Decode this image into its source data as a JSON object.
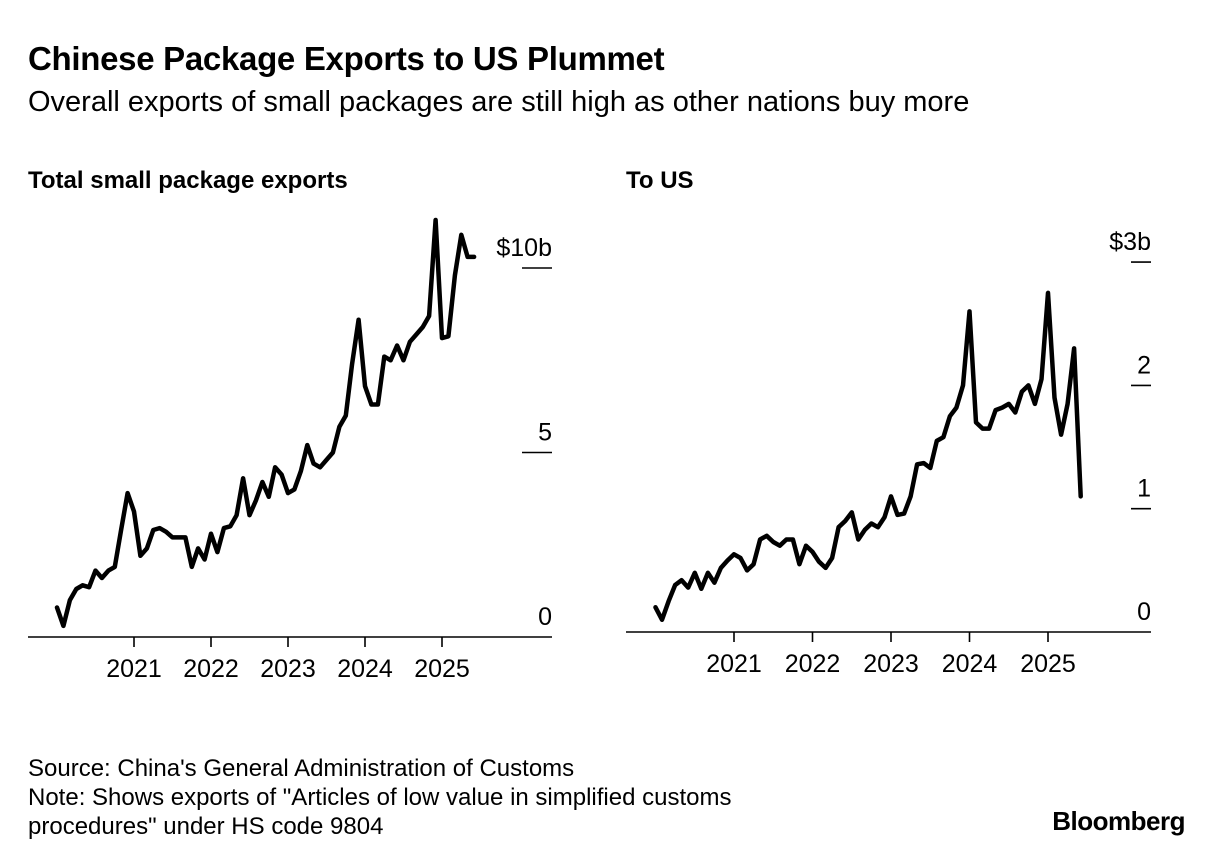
{
  "header": {
    "title": "Chinese Package Exports to US Plummet",
    "subtitle": "Overall exports of small packages are still high as other nations buy more"
  },
  "footer": {
    "source": "Source: China's General Administration of Customs",
    "note": "Note: Shows exports of \"Articles of low value in simplified customs procedures\" under HS code 9804",
    "brand": "Bloomberg"
  },
  "colors": {
    "line": "#000000",
    "axis": "#000000",
    "text": "#000000",
    "background": "#ffffff"
  },
  "chart_data": [
    {
      "type": "line",
      "title": "Total small package exports",
      "xlabel": "",
      "ylabel": "",
      "ylim": [
        0,
        11
      ],
      "xlim": [
        2019.6,
        2026.4
      ],
      "y_ticks": [
        {
          "value": 0,
          "label": "0"
        },
        {
          "value": 5,
          "label": "5"
        },
        {
          "value": 10,
          "label": "$10b"
        }
      ],
      "x_ticks": [
        {
          "value": 2021,
          "label": "2021"
        },
        {
          "value": 2022,
          "label": "2022"
        },
        {
          "value": 2023,
          "label": "2023"
        },
        {
          "value": 2024,
          "label": "2024"
        },
        {
          "value": 2025,
          "label": "2025"
        }
      ],
      "series": [
        {
          "name": "Total small package exports",
          "unit": "$b",
          "x": [
            2020.0,
            2020.083,
            2020.167,
            2020.25,
            2020.333,
            2020.417,
            2020.5,
            2020.583,
            2020.667,
            2020.75,
            2020.833,
            2020.917,
            2021.0,
            2021.083,
            2021.167,
            2021.25,
            2021.333,
            2021.417,
            2021.5,
            2021.583,
            2021.667,
            2021.75,
            2021.833,
            2021.917,
            2022.0,
            2022.083,
            2022.167,
            2022.25,
            2022.333,
            2022.417,
            2022.5,
            2022.583,
            2022.667,
            2022.75,
            2022.833,
            2022.917,
            2023.0,
            2023.083,
            2023.167,
            2023.25,
            2023.333,
            2023.417,
            2023.5,
            2023.583,
            2023.667,
            2023.75,
            2023.833,
            2023.917,
            2024.0,
            2024.083,
            2024.167,
            2024.25,
            2024.333,
            2024.417,
            2024.5,
            2024.583,
            2024.667,
            2024.75,
            2024.833,
            2024.917,
            2025.0,
            2025.083,
            2025.167,
            2025.25,
            2025.333,
            2025.417
          ],
          "values": [
            0.8,
            0.3,
            1.0,
            1.3,
            1.4,
            1.35,
            1.8,
            1.6,
            1.8,
            1.9,
            2.9,
            3.9,
            3.4,
            2.2,
            2.4,
            2.9,
            2.95,
            2.85,
            2.7,
            2.7,
            2.7,
            1.9,
            2.4,
            2.1,
            2.8,
            2.3,
            2.95,
            3.0,
            3.3,
            4.3,
            3.3,
            3.7,
            4.2,
            3.8,
            4.6,
            4.4,
            3.9,
            4.0,
            4.5,
            5.2,
            4.7,
            4.6,
            4.8,
            5.0,
            5.7,
            6.0,
            7.4,
            8.6,
            6.8,
            6.3,
            6.3,
            7.6,
            7.5,
            7.9,
            7.5,
            8.0,
            8.2,
            8.4,
            8.7,
            11.3,
            8.1,
            8.15,
            9.8,
            10.9,
            10.3,
            10.3
          ]
        }
      ]
    },
    {
      "type": "line",
      "title": "To US",
      "xlabel": "",
      "ylabel": "",
      "ylim": [
        0,
        3
      ],
      "xlim": [
        2019.6,
        2026.4
      ],
      "y_ticks": [
        {
          "value": 0,
          "label": "0"
        },
        {
          "value": 1,
          "label": "1"
        },
        {
          "value": 2,
          "label": "2"
        },
        {
          "value": 3,
          "label": "$3b"
        }
      ],
      "x_ticks": [
        {
          "value": 2021,
          "label": "2021"
        },
        {
          "value": 2022,
          "label": "2022"
        },
        {
          "value": 2023,
          "label": "2023"
        },
        {
          "value": 2024,
          "label": "2024"
        },
        {
          "value": 2025,
          "label": "2025"
        }
      ],
      "series": [
        {
          "name": "To US",
          "unit": "$b",
          "x": [
            2020.0,
            2020.083,
            2020.167,
            2020.25,
            2020.333,
            2020.417,
            2020.5,
            2020.583,
            2020.667,
            2020.75,
            2020.833,
            2020.917,
            2021.0,
            2021.083,
            2021.167,
            2021.25,
            2021.333,
            2021.417,
            2021.5,
            2021.583,
            2021.667,
            2021.75,
            2021.833,
            2021.917,
            2022.0,
            2022.083,
            2022.167,
            2022.25,
            2022.333,
            2022.417,
            2022.5,
            2022.583,
            2022.667,
            2022.75,
            2022.833,
            2022.917,
            2023.0,
            2023.083,
            2023.167,
            2023.25,
            2023.333,
            2023.417,
            2023.5,
            2023.583,
            2023.667,
            2023.75,
            2023.833,
            2023.917,
            2024.0,
            2024.083,
            2024.167,
            2024.25,
            2024.333,
            2024.417,
            2024.5,
            2024.583,
            2024.667,
            2024.75,
            2024.833,
            2024.917,
            2025.0,
            2025.083,
            2025.167,
            2025.25,
            2025.333,
            2025.417
          ],
          "values": [
            0.2,
            0.1,
            0.25,
            0.38,
            0.42,
            0.36,
            0.48,
            0.35,
            0.48,
            0.4,
            0.52,
            0.58,
            0.63,
            0.6,
            0.5,
            0.55,
            0.75,
            0.78,
            0.73,
            0.7,
            0.75,
            0.75,
            0.55,
            0.7,
            0.65,
            0.57,
            0.52,
            0.6,
            0.85,
            0.9,
            0.97,
            0.75,
            0.83,
            0.88,
            0.85,
            0.93,
            1.1,
            0.95,
            0.96,
            1.1,
            1.36,
            1.37,
            1.33,
            1.55,
            1.58,
            1.75,
            1.82,
            2.0,
            2.6,
            1.7,
            1.65,
            1.65,
            1.8,
            1.82,
            1.85,
            1.78,
            1.95,
            2.0,
            1.85,
            2.05,
            2.75,
            1.9,
            1.6,
            1.85,
            2.3,
            1.1
          ]
        }
      ]
    }
  ]
}
